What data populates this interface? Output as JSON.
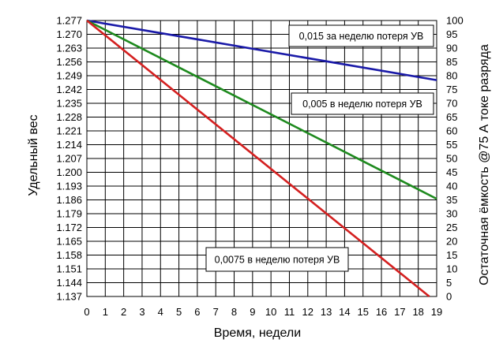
{
  "chart_data": {
    "type": "line",
    "title": "",
    "xlabel": "Время, недели",
    "ylabel_left": "Удельный вес",
    "ylabel_right": "Остаточная ёмкость @75 А токе разряда",
    "grid": true,
    "xlim": [
      0,
      19
    ],
    "x_ticks": [
      "0",
      "1",
      "2",
      "3",
      "4",
      "5",
      "6",
      "7",
      "8",
      "9",
      "10",
      "11",
      "12",
      "13",
      "14",
      "15",
      "16",
      "17",
      "18",
      "19"
    ],
    "ylim_left": [
      1.137,
      1.277
    ],
    "y_ticks_left": [
      "1.277",
      "1.270",
      "1.263",
      "1.256",
      "1.249",
      "1.242",
      "1.235",
      "1.228",
      "1.221",
      "1.214",
      "1.207",
      "1.200",
      "1.193",
      "1.186",
      "1.179",
      "1.172",
      "1.165",
      "1.158",
      "1.151",
      "1.144",
      "1.137"
    ],
    "ylim_right": [
      0,
      100
    ],
    "y_ticks_right": [
      "100",
      "95",
      "90",
      "85",
      "80",
      "75",
      "70",
      "65",
      "60",
      "55",
      "50",
      "45",
      "40",
      "35",
      "30",
      "25",
      "20",
      "15",
      "10",
      "5",
      "0"
    ],
    "series": [
      {
        "x": [
          0,
          19
        ],
        "y": [
          100,
          78.4
        ],
        "color": "#1a1aa8"
      },
      {
        "x": [
          0,
          19
        ],
        "y": [
          100,
          35.4
        ],
        "color": "#1e8a1e"
      },
      {
        "x": [
          0,
          18.6
        ],
        "y": [
          100,
          0
        ],
        "color": "#d42020"
      }
    ],
    "annotations": [
      {
        "text": "0,015 за неделю потеря УВ",
        "anchor_series": 0
      },
      {
        "text": "0,005 в неделю потеря УВ",
        "anchor_series": 1
      },
      {
        "text": "0,0075 в неделю потеря УВ",
        "anchor_series": 2
      }
    ]
  }
}
